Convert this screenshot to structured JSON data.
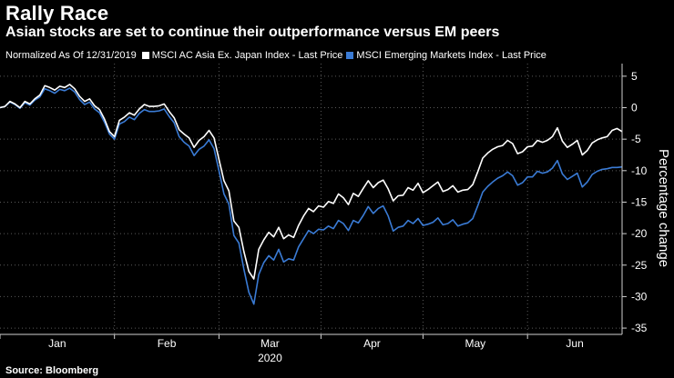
{
  "header": {
    "title": "Rally Race",
    "subtitle": "Asian stocks are set to continue their outperformance versus EM peers"
  },
  "legend": {
    "prefix": "Normalized As Of 12/31/2019",
    "items": [
      {
        "label": "MSCI AC Asia Ex. Japan Index - Last Price",
        "color": "#ffffff"
      },
      {
        "label": "MSCI Emerging Markets Index - Last Price",
        "color": "#3a7bd5"
      }
    ]
  },
  "footer": {
    "source": "Source: Bloomberg"
  },
  "chart_data": {
    "type": "line",
    "ylabel": "Percentage change",
    "xlabel": "2020",
    "ylim": [
      -36,
      7
    ],
    "y_ticks": [
      5,
      0,
      -5,
      -10,
      -15,
      -20,
      -25,
      -30,
      -35
    ],
    "month_labels": [
      "Jan",
      "Feb",
      "Mar",
      "Apr",
      "May",
      "Jun"
    ],
    "x_day_range": [
      0,
      179
    ],
    "month_start_days": [
      0,
      31,
      60,
      91,
      121,
      152
    ],
    "grid": true,
    "series": [
      {
        "name": "MSCI AC Asia Ex. Japan Index - Last Price",
        "color": "#ffffff",
        "points": [
          [
            0,
            0
          ],
          [
            2,
            0.2
          ],
          [
            4,
            1.0
          ],
          [
            6,
            0.6
          ],
          [
            8,
            0.0
          ],
          [
            10,
            1.0
          ],
          [
            12,
            0.6
          ],
          [
            14,
            1.4
          ],
          [
            16,
            2.0
          ],
          [
            18,
            3.5
          ],
          [
            20,
            3.2
          ],
          [
            22,
            2.8
          ],
          [
            24,
            3.4
          ],
          [
            26,
            3.2
          ],
          [
            28,
            3.7
          ],
          [
            30,
            3.0
          ],
          [
            32,
            1.8
          ],
          [
            34,
            1.0
          ],
          [
            36,
            1.4
          ],
          [
            38,
            0.3
          ],
          [
            40,
            -0.3
          ],
          [
            42,
            -1.8
          ],
          [
            44,
            -3.8
          ],
          [
            46,
            -4.6
          ],
          [
            48,
            -2.0
          ],
          [
            50,
            -1.5
          ],
          [
            52,
            -0.8
          ],
          [
            54,
            -1.2
          ],
          [
            56,
            -0.2
          ],
          [
            58,
            0.5
          ],
          [
            60,
            0.2
          ],
          [
            62,
            0.2
          ],
          [
            64,
            0.3
          ],
          [
            66,
            0.6
          ],
          [
            68,
            -0.6
          ],
          [
            70,
            -1.6
          ],
          [
            72,
            -3.5
          ],
          [
            74,
            -4.2
          ],
          [
            76,
            -4.8
          ],
          [
            78,
            -6.3
          ],
          [
            80,
            -5.2
          ],
          [
            82,
            -4.6
          ],
          [
            84,
            -3.6
          ],
          [
            86,
            -4.8
          ],
          [
            88,
            -8.2
          ],
          [
            90,
            -11.6
          ],
          [
            92,
            -13.2
          ],
          [
            94,
            -18.0
          ],
          [
            96,
            -19.0
          ],
          [
            98,
            -22.8
          ],
          [
            100,
            -26.0
          ],
          [
            102,
            -27.2
          ],
          [
            104,
            -22.5
          ],
          [
            106,
            -21.0
          ],
          [
            108,
            -19.8
          ],
          [
            110,
            -20.5
          ],
          [
            112,
            -19.0
          ],
          [
            114,
            -20.8
          ],
          [
            116,
            -20.2
          ],
          [
            118,
            -20.6
          ],
          [
            120,
            -18.7
          ],
          [
            122,
            -17.2
          ],
          [
            124,
            -16.0
          ],
          [
            126,
            -16.5
          ],
          [
            128,
            -15.6
          ],
          [
            130,
            -15.8
          ],
          [
            132,
            -14.9
          ],
          [
            134,
            -15.2
          ],
          [
            136,
            -13.7
          ],
          [
            138,
            -14.3
          ],
          [
            140,
            -15.4
          ],
          [
            142,
            -13.6
          ],
          [
            144,
            -14.1
          ],
          [
            146,
            -12.8
          ],
          [
            148,
            -11.6
          ],
          [
            150,
            -12.7
          ],
          [
            152,
            -11.9
          ],
          [
            154,
            -11.5
          ],
          [
            156,
            -12.9
          ],
          [
            158,
            -14.8
          ],
          [
            160,
            -14.0
          ],
          [
            162,
            -13.9
          ],
          [
            164,
            -12.7
          ],
          [
            166,
            -13.1
          ],
          [
            168,
            -12.0
          ],
          [
            170,
            -13.5
          ],
          [
            172,
            -13.0
          ],
          [
            174,
            -12.4
          ],
          [
            176,
            -11.8
          ],
          [
            178,
            -13.3
          ],
          [
            180,
            -13.0
          ],
          [
            182,
            -12.4
          ],
          [
            184,
            -13.4
          ],
          [
            186,
            -13.1
          ],
          [
            188,
            -13.0
          ],
          [
            190,
            -12.2
          ],
          [
            192,
            -10.2
          ],
          [
            194,
            -8.0
          ],
          [
            196,
            -7.2
          ],
          [
            198,
            -6.6
          ],
          [
            200,
            -6.2
          ],
          [
            202,
            -6.0
          ],
          [
            204,
            -5.2
          ],
          [
            206,
            -5.7
          ],
          [
            208,
            -7.3
          ],
          [
            210,
            -7.0
          ],
          [
            212,
            -6.2
          ],
          [
            214,
            -6.1
          ],
          [
            216,
            -5.2
          ],
          [
            218,
            -5.5
          ],
          [
            220,
            -5.2
          ],
          [
            222,
            -4.6
          ],
          [
            224,
            -3.2
          ],
          [
            226,
            -5.3
          ],
          [
            228,
            -6.3
          ],
          [
            230,
            -5.8
          ],
          [
            232,
            -5.2
          ],
          [
            234,
            -7.5
          ],
          [
            236,
            -6.8
          ],
          [
            238,
            -5.6
          ],
          [
            240,
            -5.1
          ],
          [
            242,
            -4.8
          ],
          [
            244,
            -4.6
          ],
          [
            246,
            -3.6
          ],
          [
            248,
            -3.3
          ],
          [
            250,
            -3.8
          ]
        ]
      },
      {
        "name": "MSCI Emerging Markets Index - Last Price",
        "color": "#3a7bd5",
        "points": [
          [
            0,
            0
          ],
          [
            2,
            0.2
          ],
          [
            4,
            0.9
          ],
          [
            6,
            0.5
          ],
          [
            8,
            -0.1
          ],
          [
            10,
            0.8
          ],
          [
            12,
            0.4
          ],
          [
            14,
            1.2
          ],
          [
            16,
            1.7
          ],
          [
            18,
            3.0
          ],
          [
            20,
            2.7
          ],
          [
            22,
            2.3
          ],
          [
            24,
            2.9
          ],
          [
            26,
            2.7
          ],
          [
            28,
            3.1
          ],
          [
            30,
            2.5
          ],
          [
            32,
            1.3
          ],
          [
            34,
            0.5
          ],
          [
            36,
            0.9
          ],
          [
            38,
            -0.2
          ],
          [
            40,
            -0.8
          ],
          [
            42,
            -2.3
          ],
          [
            44,
            -4.2
          ],
          [
            46,
            -5.0
          ],
          [
            48,
            -2.6
          ],
          [
            50,
            -2.2
          ],
          [
            52,
            -1.5
          ],
          [
            54,
            -1.9
          ],
          [
            56,
            -0.9
          ],
          [
            58,
            -0.3
          ],
          [
            60,
            -0.6
          ],
          [
            62,
            -0.6
          ],
          [
            64,
            -0.5
          ],
          [
            66,
            -0.2
          ],
          [
            68,
            -1.4
          ],
          [
            70,
            -2.4
          ],
          [
            72,
            -4.6
          ],
          [
            74,
            -5.5
          ],
          [
            76,
            -6.1
          ],
          [
            78,
            -7.6
          ],
          [
            80,
            -6.6
          ],
          [
            82,
            -6.1
          ],
          [
            84,
            -5.1
          ],
          [
            86,
            -6.5
          ],
          [
            88,
            -10.0
          ],
          [
            90,
            -13.7
          ],
          [
            92,
            -15.3
          ],
          [
            94,
            -20.3
          ],
          [
            96,
            -21.5
          ],
          [
            98,
            -25.6
          ],
          [
            100,
            -29.3
          ],
          [
            102,
            -31.2
          ],
          [
            104,
            -26.5
          ],
          [
            106,
            -24.6
          ],
          [
            108,
            -23.5
          ],
          [
            110,
            -24.2
          ],
          [
            112,
            -22.5
          ],
          [
            114,
            -24.5
          ],
          [
            116,
            -24.0
          ],
          [
            118,
            -24.2
          ],
          [
            120,
            -22.1
          ],
          [
            122,
            -20.8
          ],
          [
            124,
            -19.5
          ],
          [
            126,
            -20.0
          ],
          [
            128,
            -19.3
          ],
          [
            130,
            -19.4
          ],
          [
            132,
            -18.8
          ],
          [
            134,
            -19.2
          ],
          [
            136,
            -17.9
          ],
          [
            138,
            -18.4
          ],
          [
            140,
            -19.5
          ],
          [
            142,
            -17.9
          ],
          [
            144,
            -18.3
          ],
          [
            146,
            -17.1
          ],
          [
            148,
            -15.7
          ],
          [
            150,
            -16.8
          ],
          [
            152,
            -16.0
          ],
          [
            154,
            -15.6
          ],
          [
            156,
            -17.2
          ],
          [
            158,
            -19.6
          ],
          [
            160,
            -19.0
          ],
          [
            162,
            -18.8
          ],
          [
            164,
            -17.9
          ],
          [
            166,
            -18.4
          ],
          [
            168,
            -17.6
          ],
          [
            170,
            -18.7
          ],
          [
            172,
            -18.5
          ],
          [
            174,
            -18.2
          ],
          [
            176,
            -17.5
          ],
          [
            178,
            -18.6
          ],
          [
            180,
            -18.4
          ],
          [
            182,
            -17.8
          ],
          [
            184,
            -18.8
          ],
          [
            186,
            -18.5
          ],
          [
            188,
            -18.3
          ],
          [
            190,
            -17.6
          ],
          [
            192,
            -15.6
          ],
          [
            194,
            -13.4
          ],
          [
            196,
            -12.5
          ],
          [
            198,
            -11.8
          ],
          [
            200,
            -11.2
          ],
          [
            202,
            -10.8
          ],
          [
            204,
            -10.2
          ],
          [
            206,
            -10.8
          ],
          [
            208,
            -12.3
          ],
          [
            210,
            -11.9
          ],
          [
            212,
            -11.0
          ],
          [
            214,
            -11.0
          ],
          [
            216,
            -10.1
          ],
          [
            218,
            -10.4
          ],
          [
            220,
            -10.2
          ],
          [
            222,
            -9.6
          ],
          [
            224,
            -8.4
          ],
          [
            226,
            -10.5
          ],
          [
            228,
            -11.4
          ],
          [
            230,
            -10.9
          ],
          [
            232,
            -10.4
          ],
          [
            234,
            -12.6
          ],
          [
            236,
            -11.8
          ],
          [
            238,
            -10.6
          ],
          [
            240,
            -10.1
          ],
          [
            242,
            -9.8
          ],
          [
            244,
            -9.7
          ],
          [
            246,
            -9.5
          ],
          [
            248,
            -9.5
          ],
          [
            250,
            -9.4
          ]
        ]
      }
    ]
  }
}
